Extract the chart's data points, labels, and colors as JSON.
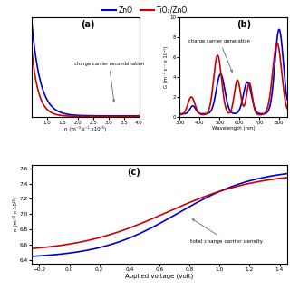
{
  "title_ZnO": "ZnO",
  "title_TiO2ZnO": "TiO₂/ZnO",
  "color_ZnO": "#0000cc",
  "color_TiO2ZnO": "#cc0000",
  "line_width": 1.2,
  "panel_a": {
    "label": "(a)",
    "xlabel": "n (m⁻³.s⁻¹ x10²⁵)",
    "xlim": [
      0.5,
      4.0
    ],
    "ylim_ratio": 1.0,
    "annotation": "charge carrier recombination",
    "xticks": [
      1.0,
      1.5,
      2.0,
      2.5,
      3.0,
      3.5,
      4.0
    ]
  },
  "panel_b": {
    "label": "(b)",
    "xlabel": "Wavelength (nm)",
    "ylabel": "G (m⁻³ s⁻¹ x 10²⁵)",
    "xlim": [
      300,
      840
    ],
    "ylim": [
      0,
      10
    ],
    "annotation": "charge carrier generation",
    "xticks": [
      300,
      400,
      500,
      600,
      700,
      800
    ],
    "yticks": [
      0,
      1,
      2,
      3,
      4,
      5,
      6,
      7,
      8,
      9,
      10
    ]
  },
  "panel_c": {
    "label": "(c)",
    "xlabel": "Applied voltage (volt)",
    "ylabel": "n (m⁻³ x 10²⁵)",
    "xlim": [
      -0.25,
      1.45
    ],
    "ylim": [
      6.35,
      7.65
    ],
    "annotation": "total charge carrier density",
    "xticks": [
      -0.2,
      0.0,
      0.2,
      0.4,
      0.6,
      0.8,
      1.0,
      1.2,
      1.4
    ],
    "yticks": [
      6.4,
      6.6,
      6.8,
      7.0,
      7.2,
      7.4,
      7.6
    ]
  },
  "background_color": "#ffffff",
  "fig_background": "#ffffff"
}
